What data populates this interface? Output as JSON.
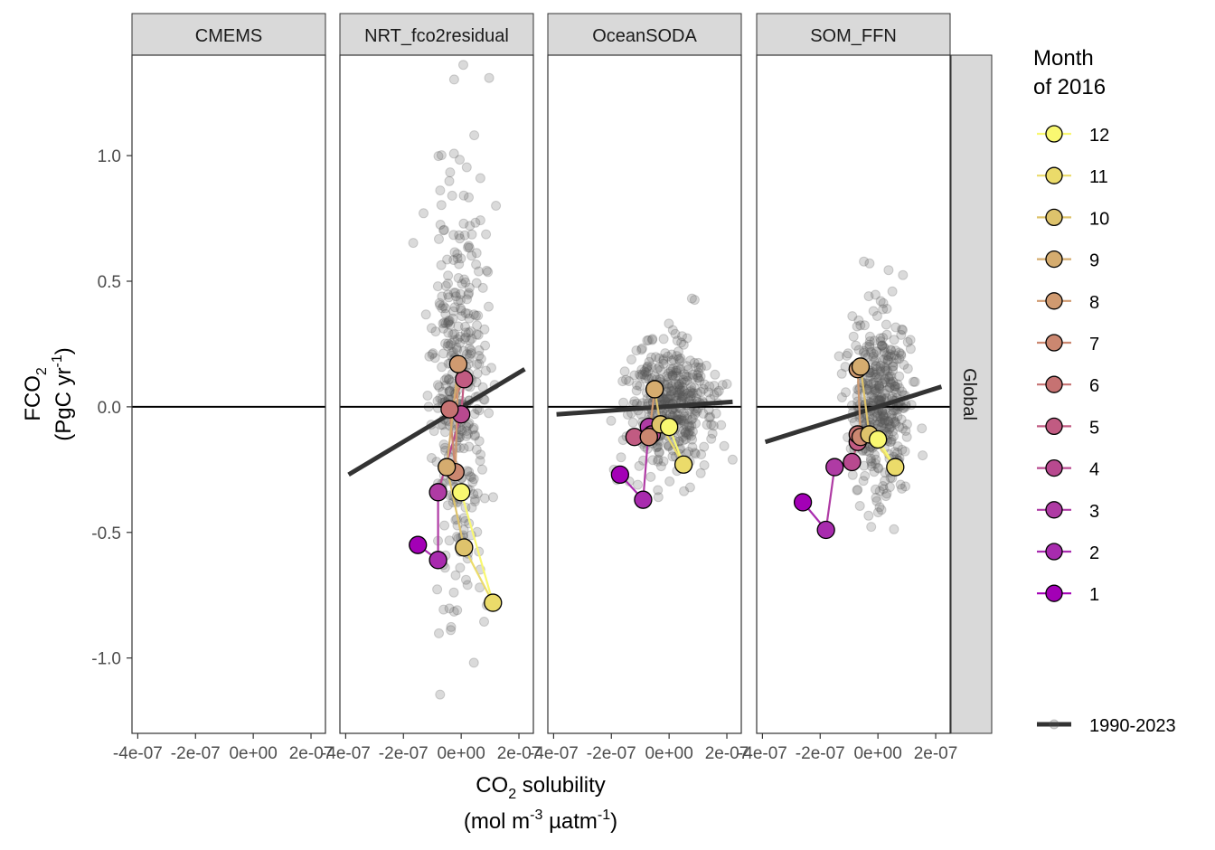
{
  "chart_data": {
    "type": "scatter",
    "facet_labels": [
      "CMEMS",
      "NRT_fco2residual",
      "OceanSODA",
      "SOM_FFN"
    ],
    "strip_right_label": "Global",
    "y_axis": {
      "label_line1": "FCO",
      "label_sub": "2",
      "label_line2_a": "(PgC yr",
      "label_line2_sup": "-1",
      "label_line2_b": ")",
      "ylim": [
        -1.3,
        1.4
      ],
      "ticks": [
        -1.0,
        -0.5,
        0.0,
        0.5,
        1.0
      ],
      "tick_labels": [
        "-1.0",
        "-0.5",
        "0.0",
        "0.5",
        "1.0"
      ]
    },
    "x_axis": {
      "label_line1_a": "CO",
      "label_line1_sub": "2",
      "label_line1_b": " solubility",
      "label_line2_a": "(mol m",
      "label_line2_sup1": "-3",
      "label_line2_b": " µatm",
      "label_line2_sup2": "-1",
      "label_line2_c": ")",
      "xlim": [
        -4.2e-07,
        2.5e-07
      ],
      "ticks": [
        -4e-07,
        -2e-07,
        0,
        2e-07
      ],
      "tick_labels": [
        "-4e-07",
        "-2e-07",
        "0e+00",
        "2e-07"
      ]
    },
    "legend": {
      "title_line1": "Month",
      "title_line2": "of 2016",
      "months": [
        "12",
        "11",
        "10",
        "9",
        "8",
        "7",
        "6",
        "5",
        "4",
        "3",
        "2",
        "1"
      ],
      "colors": [
        "#F9F871",
        "#EBDB6A",
        "#DEC36C",
        "#D5AC6F",
        "#D09A70",
        "#CB8770",
        "#C67272",
        "#C15B82",
        "#B8498F",
        "#AF3BA4",
        "#A82BAE",
        "#A300B6"
      ],
      "fit_label": "1990-2023"
    },
    "colors": {
      "background_points": "#555555",
      "fit_line": "#333333",
      "strip_fill": "#D9D9D9",
      "panel_border": "#333333"
    },
    "panels": [
      {
        "name": "CMEMS",
        "cloud": null,
        "fit": null,
        "monthly": []
      },
      {
        "name": "NRT_fco2residual",
        "cloud": {
          "cx": -1e-08,
          "cy": 0.05,
          "sx": 4.5e-08,
          "sy": 0.42,
          "n": 380,
          "xmin": -2.6e-07,
          "xmax": 1.9e-07,
          "seed": 11
        },
        "fit": {
          "x": [
            -3.9e-07,
            2.2e-07
          ],
          "y": [
            -0.27,
            0.15
          ]
        },
        "monthly": [
          {
            "m": 1,
            "x": -1.5e-07,
            "y": -0.55
          },
          {
            "m": 2,
            "x": -8e-08,
            "y": -0.61
          },
          {
            "m": 3,
            "x": -8e-08,
            "y": -0.34
          },
          {
            "m": 4,
            "x": 0.0,
            "y": -0.03
          },
          {
            "m": 5,
            "x": 1e-08,
            "y": 0.11
          },
          {
            "m": 6,
            "x": -4e-08,
            "y": -0.01
          },
          {
            "m": 7,
            "x": -2e-08,
            "y": -0.26
          },
          {
            "m": 8,
            "x": -1e-08,
            "y": 0.17
          },
          {
            "m": 9,
            "x": -5e-08,
            "y": -0.24
          },
          {
            "m": 10,
            "x": 1e-08,
            "y": -0.56
          },
          {
            "m": 11,
            "x": 1.1e-07,
            "y": -0.78
          },
          {
            "m": 12,
            "x": 0.0,
            "y": -0.34
          }
        ]
      },
      {
        "name": "OceanSODA",
        "cloud": {
          "cx": 0.0,
          "cy": 0.0,
          "sx": 7e-08,
          "sy": 0.13,
          "n": 420,
          "xmin": -3.9e-07,
          "xmax": 2.2e-07,
          "seed": 23
        },
        "fit": {
          "x": [
            -3.9e-07,
            2.2e-07
          ],
          "y": [
            -0.03,
            0.02
          ]
        },
        "monthly": [
          {
            "m": 1,
            "x": -1.7e-07,
            "y": -0.27
          },
          {
            "m": 2,
            "x": -9e-08,
            "y": -0.37
          },
          {
            "m": 3,
            "x": -7e-08,
            "y": -0.08
          },
          {
            "m": 4,
            "x": -6e-08,
            "y": -0.11
          },
          {
            "m": 5,
            "x": -1.2e-07,
            "y": -0.12
          },
          {
            "m": 6,
            "x": -7e-08,
            "y": -0.12
          },
          {
            "m": 7,
            "x": -7e-08,
            "y": -0.12
          },
          {
            "m": 8,
            "x": -5e-08,
            "y": 0.07
          },
          {
            "m": 9,
            "x": -5e-08,
            "y": 0.07
          },
          {
            "m": 10,
            "x": -3e-08,
            "y": -0.07
          },
          {
            "m": 11,
            "x": 5e-08,
            "y": -0.23
          },
          {
            "m": 12,
            "x": 0.0,
            "y": -0.08
          }
        ]
      },
      {
        "name": "SOM_FFN",
        "cloud": {
          "cx": 1e-08,
          "cy": 0.02,
          "sx": 5e-08,
          "sy": 0.18,
          "n": 400,
          "xmin": -2.2e-07,
          "xmax": 2.2e-07,
          "seed": 37
        },
        "fit": {
          "x": [
            -3.9e-07,
            2.2e-07
          ],
          "y": [
            -0.14,
            0.08
          ]
        },
        "monthly": [
          {
            "m": 1,
            "x": -2.6e-07,
            "y": -0.38
          },
          {
            "m": 2,
            "x": -1.8e-07,
            "y": -0.49
          },
          {
            "m": 3,
            "x": -1.5e-07,
            "y": -0.24
          },
          {
            "m": 4,
            "x": -9e-08,
            "y": -0.22
          },
          {
            "m": 5,
            "x": -7e-08,
            "y": -0.14
          },
          {
            "m": 6,
            "x": -7e-08,
            "y": -0.11
          },
          {
            "m": 7,
            "x": -6e-08,
            "y": -0.12
          },
          {
            "m": 8,
            "x": -7e-08,
            "y": 0.15
          },
          {
            "m": 9,
            "x": -6e-08,
            "y": 0.16
          },
          {
            "m": 10,
            "x": -3e-08,
            "y": -0.11
          },
          {
            "m": 11,
            "x": 6e-08,
            "y": -0.24
          },
          {
            "m": 12,
            "x": 0.0,
            "y": -0.13
          }
        ]
      }
    ]
  }
}
